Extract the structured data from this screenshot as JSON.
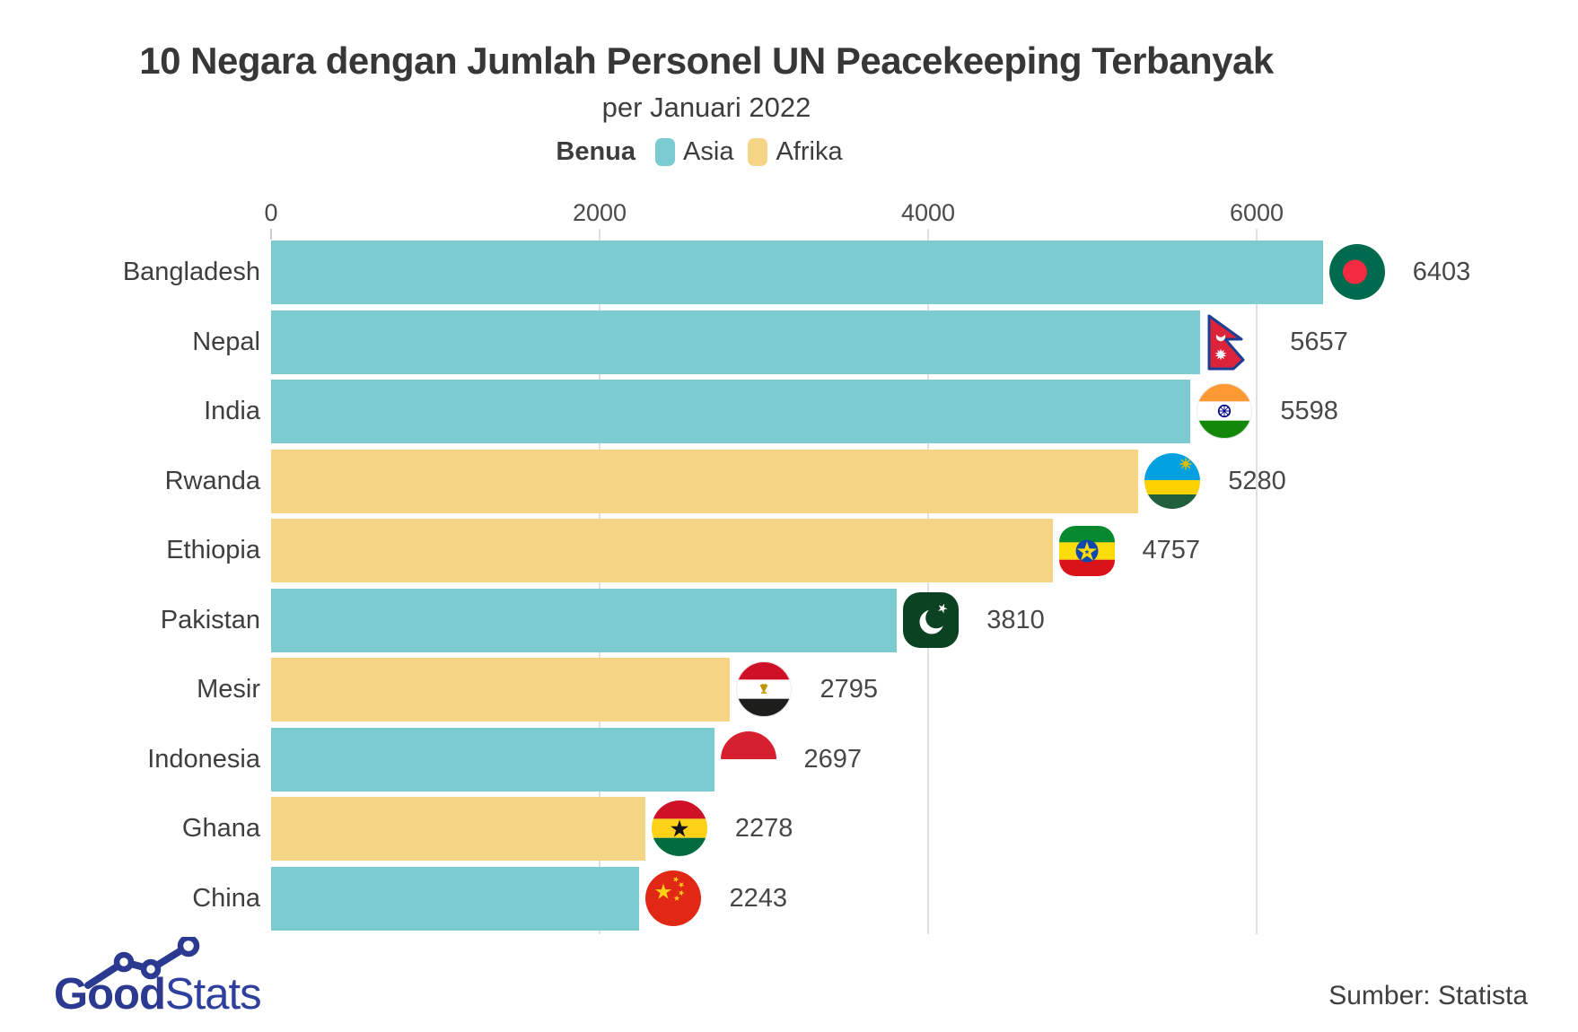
{
  "header": {
    "title": "10 Negara dengan Jumlah Personel UN Peacekeeping Terbanyak",
    "subtitle": "per Januari 2022",
    "legend_title": "Benua",
    "legend": [
      {
        "label": "Asia",
        "color": "#7ccbd1"
      },
      {
        "label": "Afrika",
        "color": "#f5d585"
      }
    ]
  },
  "chart_data": {
    "type": "bar",
    "orientation": "horizontal",
    "title": "10 Negara dengan Jumlah Personel UN Peacekeeping Terbanyak",
    "subtitle": "per Januari 2022",
    "legend_title": "Benua",
    "legend_position": "top",
    "categories": [
      "Bangladesh",
      "Nepal",
      "India",
      "Rwanda",
      "Ethiopia",
      "Pakistan",
      "Mesir",
      "Indonesia",
      "Ghana",
      "China"
    ],
    "values": [
      6403,
      5657,
      5598,
      5280,
      4757,
      3810,
      2795,
      2697,
      2278,
      2243
    ],
    "continents": [
      "Asia",
      "Asia",
      "Asia",
      "Afrika",
      "Afrika",
      "Asia",
      "Afrika",
      "Asia",
      "Afrika",
      "Asia"
    ],
    "colors": {
      "Asia": "#7ccbd1",
      "Afrika": "#f5d585"
    },
    "x_ticks": [
      0,
      2000,
      4000,
      6000
    ],
    "xlim": [
      0,
      6500
    ],
    "grid": "vertical",
    "value_labels_shown": true,
    "flag_icons": [
      "bangladesh",
      "nepal",
      "india",
      "rwanda",
      "ethiopia",
      "pakistan",
      "egypt",
      "indonesia",
      "ghana",
      "china"
    ]
  },
  "footer": {
    "logo_good": "Good",
    "logo_stats": "Stats",
    "source": "Sumber: Statista"
  }
}
